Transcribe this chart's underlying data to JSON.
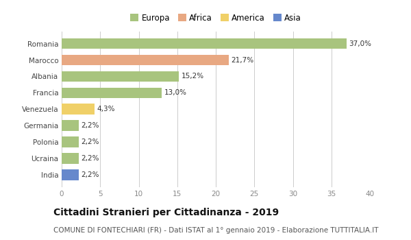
{
  "categories": [
    "Romania",
    "Marocco",
    "Albania",
    "Francia",
    "Venezuela",
    "Germania",
    "Polonia",
    "Ucraina",
    "India"
  ],
  "values": [
    37.0,
    21.7,
    15.2,
    13.0,
    4.3,
    2.2,
    2.2,
    2.2,
    2.2
  ],
  "labels": [
    "37,0%",
    "21,7%",
    "15,2%",
    "13,0%",
    "4,3%",
    "2,2%",
    "2,2%",
    "2,2%",
    "2,2%"
  ],
  "colors": [
    "#a8c47e",
    "#e8a882",
    "#a8c47e",
    "#a8c47e",
    "#f0d068",
    "#a8c47e",
    "#a8c47e",
    "#a8c47e",
    "#6688cc"
  ],
  "legend_labels": [
    "Europa",
    "Africa",
    "America",
    "Asia"
  ],
  "legend_colors": [
    "#a8c47e",
    "#e8a882",
    "#f0d068",
    "#6688cc"
  ],
  "xlim": [
    0,
    40
  ],
  "xticks": [
    0,
    5,
    10,
    15,
    20,
    25,
    30,
    35,
    40
  ],
  "title": "Cittadini Stranieri per Cittadinanza - 2019",
  "subtitle": "COMUNE DI FONTECHIARI (FR) - Dati ISTAT al 1° gennaio 2019 - Elaborazione TUTTITALIA.IT",
  "bg_color": "#ffffff",
  "bar_height": 0.65,
  "title_fontsize": 10,
  "subtitle_fontsize": 7.5,
  "label_fontsize": 7.5,
  "tick_fontsize": 7.5,
  "legend_fontsize": 8.5
}
